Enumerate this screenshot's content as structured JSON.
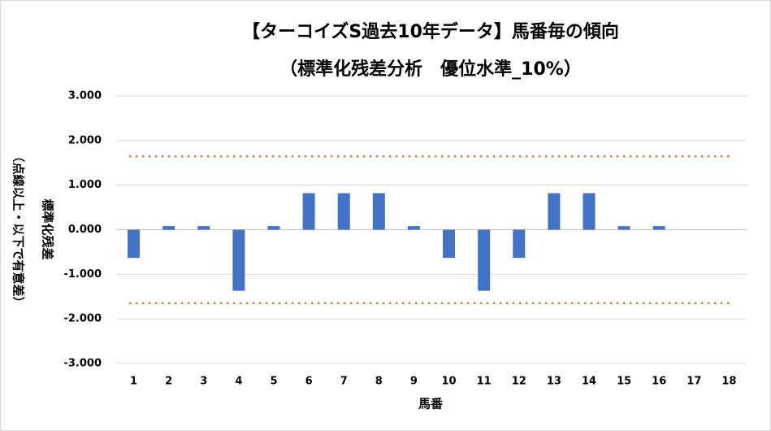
{
  "chart_data": {
    "type": "bar",
    "title": "【ターコイズS過去10年データ】馬番毎の傾向",
    "subtitle": "（標準化残差分析　優位水準_10%）",
    "x_label": "馬番",
    "y_label": "標準化残差",
    "y_label_note": "（点線以上・以下で有意差）",
    "categories": [
      "1",
      "2",
      "3",
      "4",
      "5",
      "6",
      "7",
      "8",
      "9",
      "10",
      "11",
      "12",
      "13",
      "14",
      "15",
      "16",
      "17",
      "18"
    ],
    "values": [
      -0.63,
      0.08,
      0.08,
      -1.37,
      0.08,
      0.82,
      0.82,
      0.82,
      0.08,
      -0.63,
      -1.37,
      -0.63,
      0.82,
      0.82,
      0.08,
      0.08,
      null,
      null
    ],
    "color": "#4472c4",
    "reference_lines": [
      1.645,
      -1.645
    ],
    "reference_color": "#ed7d31",
    "ylim": [
      -3,
      3
    ],
    "yticks": [
      {
        "value": 3,
        "label": "3.000"
      },
      {
        "value": 2,
        "label": "2.000"
      },
      {
        "value": 1,
        "label": "1.000"
      },
      {
        "value": 0,
        "label": "0.000"
      },
      {
        "value": -1,
        "label": "-1.000"
      },
      {
        "value": -2,
        "label": "-2.000"
      },
      {
        "value": -3,
        "label": "-3.000"
      }
    ],
    "grid": true
  }
}
